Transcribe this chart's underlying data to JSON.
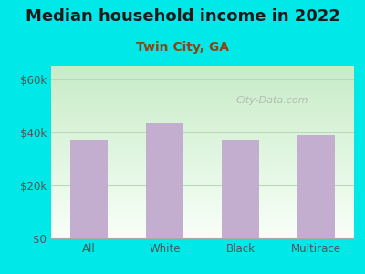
{
  "title": "Median household income in 2022",
  "subtitle": "Twin City, GA",
  "categories": [
    "All",
    "White",
    "Black",
    "Multirace"
  ],
  "values": [
    37000,
    43500,
    37200,
    39000
  ],
  "bar_color": "#c4aed0",
  "title_fontsize": 13,
  "subtitle_fontsize": 10,
  "subtitle_color": "#8B4513",
  "title_color": "#1a1a1a",
  "background_color": "#00e8e8",
  "plot_bg_color_top": "#c8ecc8",
  "plot_bg_color_bottom": "#f8fff8",
  "yticks": [
    0,
    20000,
    40000,
    60000
  ],
  "ytick_labels": [
    "$0",
    "$20k",
    "$40k",
    "$60k"
  ],
  "ylim": [
    0,
    65000
  ],
  "grid_color": "#b8d8b8",
  "watermark": "City-Data.com",
  "tick_color": "#555555",
  "bar_width": 0.5
}
